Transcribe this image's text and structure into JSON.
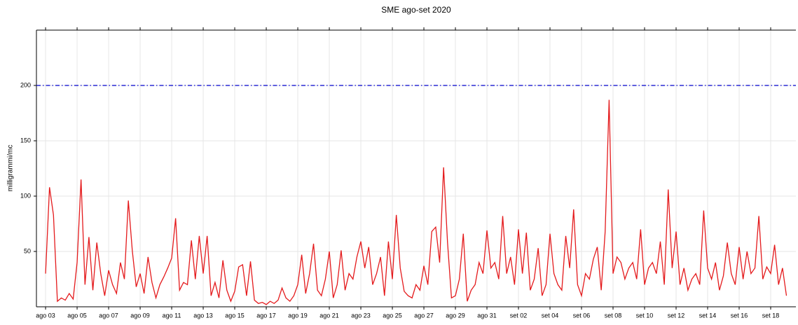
{
  "chart_data": {
    "type": "line",
    "title": "SME ago-set 2020",
    "y_label": "milligrammi/mc",
    "xlim": [
      -0.58,
      47.6
    ],
    "ylim": [
      0,
      250
    ],
    "yticks": [
      50,
      100,
      150,
      200
    ],
    "grid": true,
    "threshold": 200,
    "threshold_color": "#0000cc",
    "xticks": [
      {
        "value": 0,
        "label": "ago 03"
      },
      {
        "value": 2,
        "label": "ago 05"
      },
      {
        "value": 4,
        "label": "ago 07"
      },
      {
        "value": 6,
        "label": "ago 09"
      },
      {
        "value": 8,
        "label": "ago 11"
      },
      {
        "value": 10,
        "label": "ago 13"
      },
      {
        "value": 12,
        "label": "ago 15"
      },
      {
        "value": 14,
        "label": "ago 17"
      },
      {
        "value": 16,
        "label": "ago 19"
      },
      {
        "value": 18,
        "label": "ago 21"
      },
      {
        "value": 20,
        "label": "ago 23"
      },
      {
        "value": 22,
        "label": "ago 25"
      },
      {
        "value": 24,
        "label": "ago 27"
      },
      {
        "value": 26,
        "label": "ago 29"
      },
      {
        "value": 28,
        "label": "ago 31"
      },
      {
        "value": 30,
        "label": "set 02"
      },
      {
        "value": 32,
        "label": "set 04"
      },
      {
        "value": 34,
        "label": "set 06"
      },
      {
        "value": 36,
        "label": "set 08"
      },
      {
        "value": 38,
        "label": "set 10"
      },
      {
        "value": 40,
        "label": "set 12"
      },
      {
        "value": 42,
        "label": "set 14"
      },
      {
        "value": 44,
        "label": "set 16"
      },
      {
        "value": 46,
        "label": "set 18"
      }
    ],
    "x": [
      0,
      0.25,
      0.5,
      0.75,
      1,
      1.25,
      1.5,
      1.75,
      2,
      2.25,
      2.5,
      2.75,
      3,
      3.25,
      3.5,
      3.75,
      4,
      4.25,
      4.5,
      4.75,
      5,
      5.25,
      5.5,
      5.75,
      6,
      6.25,
      6.5,
      6.75,
      7,
      7.25,
      7.5,
      7.75,
      8,
      8.25,
      8.5,
      8.75,
      9,
      9.25,
      9.5,
      9.75,
      10,
      10.25,
      10.5,
      10.75,
      11,
      11.25,
      11.5,
      11.75,
      12,
      12.25,
      12.5,
      12.75,
      13,
      13.25,
      13.5,
      13.75,
      14,
      14.25,
      14.5,
      14.75,
      15,
      15.25,
      15.5,
      15.75,
      16,
      16.25,
      16.5,
      16.75,
      17,
      17.25,
      17.5,
      17.75,
      18,
      18.25,
      18.5,
      18.75,
      19,
      19.25,
      19.5,
      19.75,
      20,
      20.25,
      20.5,
      20.75,
      21,
      21.25,
      21.5,
      21.75,
      22,
      22.25,
      22.5,
      22.75,
      23,
      23.25,
      23.5,
      23.75,
      24,
      24.25,
      24.5,
      24.75,
      25,
      25.25,
      25.5,
      25.75,
      26,
      26.25,
      26.5,
      26.75,
      27,
      27.25,
      27.5,
      27.75,
      28,
      28.25,
      28.5,
      28.75,
      29,
      29.25,
      29.5,
      29.75,
      30,
      30.25,
      30.5,
      30.75,
      31,
      31.25,
      31.5,
      31.75,
      32,
      32.25,
      32.5,
      32.75,
      33,
      33.25,
      33.5,
      33.75,
      34,
      34.25,
      34.5,
      34.75,
      35,
      35.25,
      35.5,
      35.75,
      36,
      36.25,
      36.5,
      36.75,
      37,
      37.25,
      37.5,
      37.75,
      38,
      38.25,
      38.5,
      38.75,
      39,
      39.25,
      39.5,
      39.75,
      40,
      40.25,
      40.5,
      40.75,
      41,
      41.25,
      41.5,
      41.75,
      42,
      42.25,
      42.5,
      42.75,
      43,
      43.25,
      43.5,
      43.75,
      44,
      44.25,
      44.5,
      44.75,
      45,
      45.25,
      45.5,
      45.75,
      46,
      46.25,
      46.5,
      46.75,
      47
    ],
    "series": [
      {
        "name": "SME",
        "color": "#e41a1c",
        "values": [
          30,
          108,
          83,
          5,
          8,
          6,
          12,
          7,
          40,
          115,
          20,
          63,
          15,
          58,
          30,
          10,
          33,
          20,
          12,
          40,
          25,
          96,
          51,
          18,
          30,
          12,
          45,
          22,
          8,
          20,
          27,
          35,
          44,
          80,
          15,
          22,
          20,
          60,
          25,
          64,
          30,
          64,
          10,
          22,
          8,
          42,
          15,
          5,
          14,
          36,
          38,
          10,
          41,
          6,
          3,
          4,
          2,
          5,
          3,
          6,
          17,
          8,
          5,
          10,
          20,
          47,
          12,
          30,
          57,
          15,
          10,
          25,
          50,
          8,
          20,
          51,
          15,
          30,
          25,
          45,
          59,
          35,
          54,
          20,
          30,
          45,
          10,
          59,
          25,
          83,
          35,
          14,
          10,
          8,
          20,
          15,
          37,
          20,
          68,
          72,
          40,
          126,
          58,
          8,
          10,
          25,
          66,
          5,
          15,
          20,
          40,
          30,
          69,
          35,
          40,
          25,
          82,
          30,
          45,
          20,
          70,
          30,
          67,
          15,
          25,
          53,
          10,
          20,
          66,
          30,
          20,
          15,
          64,
          35,
          88,
          20,
          10,
          30,
          25,
          43,
          54,
          15,
          68,
          187,
          30,
          45,
          40,
          25,
          35,
          40,
          25,
          70,
          20,
          35,
          40,
          30,
          59,
          20,
          106,
          35,
          68,
          20,
          35,
          15,
          25,
          30,
          20,
          87,
          35,
          25,
          40,
          15,
          28,
          58,
          30,
          20,
          54,
          25,
          50,
          30,
          35,
          82,
          25,
          36,
          30,
          56,
          20,
          35,
          10
        ]
      }
    ]
  }
}
